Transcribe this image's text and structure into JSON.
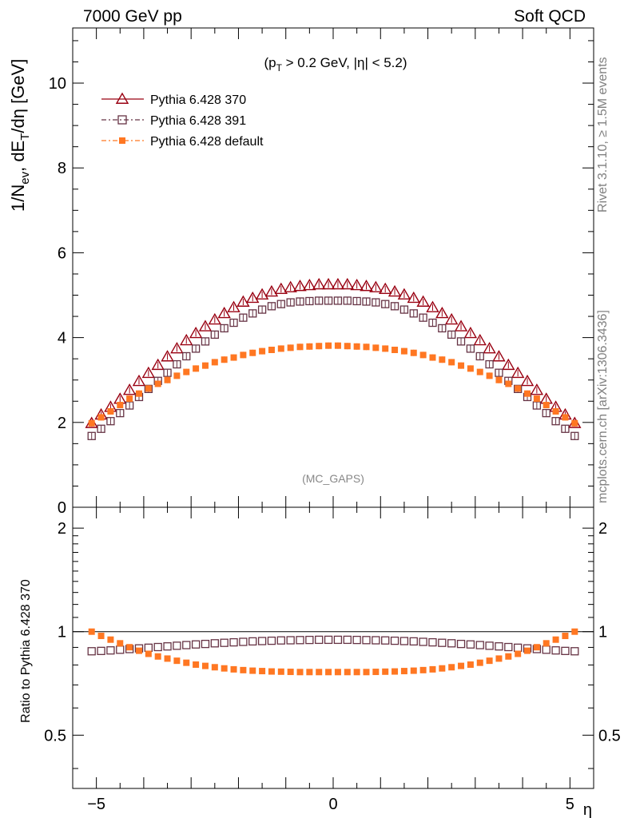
{
  "header": {
    "left": "7000 GeV pp",
    "right": "Soft QCD"
  },
  "side_labels": {
    "rivet": "Rivet 3.1.10, ≥ 1.5M events",
    "mcplots": "mcplots.cern.ch [arXiv:1306.3436]"
  },
  "colors": {
    "p370": "#990011",
    "p391": "#663344",
    "pdef": "#ff7722",
    "axis": "#000000",
    "watermark": "#888888"
  },
  "chart_data": [
    {
      "type": "scatter",
      "title": "(p_T > 0.2 GeV, |η| < 5.2)",
      "xlabel": "η",
      "ylabel": "1/N_ev, dE_T/dη [GeV]",
      "xlim": [
        -5.5,
        5.5
      ],
      "ylim": [
        0,
        11.3
      ],
      "yticks": [
        0,
        2,
        4,
        6,
        8,
        10
      ],
      "ytick_labels": [
        "0",
        "2",
        "4",
        "6",
        "8",
        "10"
      ],
      "watermark": "(MC_GAPS)",
      "x": [
        -5.1,
        -4.9,
        -4.7,
        -4.5,
        -4.3,
        -4.1,
        -3.9,
        -3.7,
        -3.5,
        -3.3,
        -3.1,
        -2.9,
        -2.7,
        -2.5,
        -2.3,
        -2.1,
        -1.9,
        -1.7,
        -1.5,
        -1.3,
        -1.1,
        -0.9,
        -0.7,
        -0.5,
        -0.3,
        -0.1,
        0.1,
        0.3,
        0.5,
        0.7,
        0.9,
        1.1,
        1.3,
        1.5,
        1.7,
        1.9,
        2.1,
        2.3,
        2.5,
        2.7,
        2.9,
        3.1,
        3.3,
        3.5,
        3.7,
        3.9,
        4.1,
        4.3,
        4.5,
        4.7,
        4.9,
        5.1
      ],
      "series": [
        {
          "name": "Pythia 6.428 370",
          "marker": "triangle-open",
          "values": [
            1.98,
            2.18,
            2.36,
            2.55,
            2.76,
            2.97,
            3.16,
            3.35,
            3.55,
            3.74,
            3.93,
            4.1,
            4.26,
            4.42,
            4.57,
            4.71,
            4.84,
            4.93,
            5.01,
            5.08,
            5.14,
            5.18,
            5.21,
            5.23,
            5.25,
            5.25,
            5.25,
            5.25,
            5.23,
            5.21,
            5.18,
            5.14,
            5.08,
            5.01,
            4.93,
            4.84,
            4.71,
            4.57,
            4.42,
            4.26,
            4.1,
            3.93,
            3.74,
            3.55,
            3.35,
            3.16,
            2.97,
            2.76,
            2.55,
            2.36,
            2.18,
            1.98
          ]
        },
        {
          "name": "Pythia 6.428 391",
          "marker": "square-open",
          "values": [
            1.68,
            1.85,
            2.03,
            2.22,
            2.4,
            2.6,
            2.79,
            2.98,
            3.17,
            3.37,
            3.56,
            3.74,
            3.91,
            4.07,
            4.22,
            4.35,
            4.47,
            4.57,
            4.66,
            4.74,
            4.79,
            4.83,
            4.85,
            4.86,
            4.87,
            4.87,
            4.87,
            4.87,
            4.86,
            4.85,
            4.83,
            4.79,
            4.74,
            4.66,
            4.57,
            4.47,
            4.35,
            4.22,
            4.07,
            3.91,
            3.74,
            3.56,
            3.37,
            3.17,
            2.98,
            2.79,
            2.6,
            2.4,
            2.22,
            2.03,
            1.85,
            1.68
          ]
        },
        {
          "name": "Pythia 6.428 default",
          "marker": "square-filled",
          "values": [
            1.98,
            2.12,
            2.26,
            2.41,
            2.56,
            2.68,
            2.8,
            2.91,
            3.0,
            3.1,
            3.19,
            3.27,
            3.34,
            3.42,
            3.48,
            3.53,
            3.59,
            3.64,
            3.68,
            3.71,
            3.74,
            3.76,
            3.78,
            3.79,
            3.8,
            3.81,
            3.81,
            3.8,
            3.79,
            3.78,
            3.76,
            3.74,
            3.71,
            3.68,
            3.64,
            3.59,
            3.53,
            3.48,
            3.42,
            3.34,
            3.27,
            3.19,
            3.1,
            3.0,
            2.91,
            2.8,
            2.68,
            2.56,
            2.41,
            2.26,
            2.12,
            1.98
          ]
        }
      ]
    },
    {
      "type": "scatter",
      "xlabel": "η",
      "ylabel": "Ratio to Pythia 6.428 370",
      "xlim": [
        -5.5,
        5.5
      ],
      "ylim": [
        0.35,
        2.3
      ],
      "yscale": "log",
      "reference_line": 1,
      "yticks": [
        0.5,
        1,
        2
      ],
      "ytick_labels": [
        "0.5",
        "1",
        "2"
      ],
      "xticks": [
        -5,
        0,
        5
      ],
      "xtick_labels": [
        "−5",
        "0",
        "5"
      ],
      "series": [
        {
          "name": "Pythia 6.428 391",
          "values": [
            0.877,
            0.879,
            0.882,
            0.886,
            0.89,
            0.894,
            0.898,
            0.902,
            0.906,
            0.91,
            0.914,
            0.918,
            0.921,
            0.925,
            0.928,
            0.931,
            0.934,
            0.937,
            0.939,
            0.941,
            0.943,
            0.944,
            0.945,
            0.946,
            0.947,
            0.947,
            0.947,
            0.947,
            0.946,
            0.945,
            0.944,
            0.943,
            0.941,
            0.939,
            0.937,
            0.934,
            0.931,
            0.928,
            0.925,
            0.921,
            0.918,
            0.914,
            0.91,
            0.906,
            0.902,
            0.898,
            0.894,
            0.89,
            0.886,
            0.882,
            0.879,
            0.877
          ]
        },
        {
          "name": "Pythia 6.428 default",
          "values": [
            1.0,
            0.972,
            0.948,
            0.925,
            0.901,
            0.88,
            0.862,
            0.847,
            0.835,
            0.823,
            0.812,
            0.802,
            0.795,
            0.788,
            0.782,
            0.777,
            0.773,
            0.77,
            0.768,
            0.766,
            0.765,
            0.764,
            0.763,
            0.763,
            0.763,
            0.763,
            0.763,
            0.763,
            0.763,
            0.763,
            0.764,
            0.765,
            0.766,
            0.768,
            0.77,
            0.773,
            0.777,
            0.782,
            0.788,
            0.795,
            0.802,
            0.812,
            0.823,
            0.835,
            0.847,
            0.862,
            0.88,
            0.901,
            0.925,
            0.948,
            0.972,
            1.0
          ]
        }
      ]
    }
  ]
}
